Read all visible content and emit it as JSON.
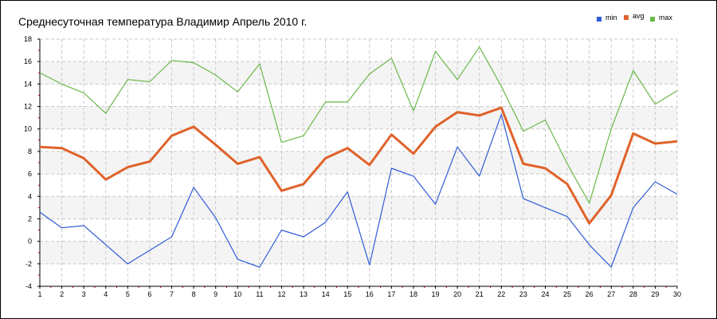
{
  "chart_data": {
    "type": "line",
    "title": "Среднесуточная температура Владимир  Апрель 2010 г.",
    "x": [
      1,
      2,
      3,
      4,
      5,
      6,
      7,
      8,
      9,
      10,
      11,
      12,
      13,
      14,
      15,
      16,
      17,
      18,
      19,
      20,
      21,
      22,
      23,
      24,
      25,
      26,
      27,
      28,
      29,
      30
    ],
    "x_tick_labels": [
      "1",
      "2",
      "3",
      "4",
      "5",
      "6",
      "7",
      "8",
      "9",
      "10",
      "11",
      "12",
      "13",
      "14",
      "15",
      "16",
      "17",
      "18",
      "19",
      "20",
      "21",
      "22",
      "23",
      "24",
      "25",
      "26",
      "27",
      "28",
      "29",
      "30"
    ],
    "xlim": [
      1,
      30
    ],
    "ylim": [
      -4,
      18
    ],
    "y_ticks": [
      -4,
      -2,
      0,
      2,
      4,
      6,
      8,
      10,
      12,
      14,
      16,
      18
    ],
    "y_tick_labels": [
      "-4",
      "-2",
      "0",
      "2",
      "4",
      "6",
      "8",
      "10",
      "12",
      "14",
      "16",
      "18"
    ],
    "grid": true,
    "legend_position": "top-right",
    "series": [
      {
        "name": "min",
        "color": "#2f5bd8",
        "values": [
          2.6,
          1.2,
          1.4,
          -0.3,
          -2.0,
          -0.8,
          0.4,
          4.8,
          2.1,
          -1.6,
          -2.3,
          1.0,
          0.4,
          1.7,
          4.4,
          -2.1,
          6.5,
          5.8,
          3.3,
          8.4,
          5.8,
          11.3,
          3.8,
          3.0,
          2.2,
          -0.3,
          -2.3,
          3.0,
          5.3,
          4.2
        ]
      },
      {
        "name": "avg",
        "color": "#e0622a",
        "values": [
          8.4,
          8.3,
          7.4,
          5.5,
          6.6,
          7.1,
          9.4,
          10.2,
          8.6,
          6.9,
          7.5,
          4.5,
          5.1,
          7.4,
          8.3,
          6.8,
          9.5,
          7.8,
          10.2,
          11.5,
          11.2,
          11.9,
          6.9,
          6.5,
          5.1,
          1.6,
          4.1,
          9.6,
          8.7,
          8.9
        ]
      },
      {
        "name": "max",
        "color": "#6ab84a",
        "values": [
          15.0,
          14.0,
          13.2,
          11.4,
          14.4,
          14.2,
          16.1,
          15.9,
          14.8,
          13.3,
          15.8,
          8.8,
          9.4,
          12.4,
          12.4,
          14.9,
          16.3,
          11.6,
          16.9,
          14.4,
          17.3,
          13.8,
          9.8,
          10.8,
          6.9,
          3.4,
          10.0,
          15.2,
          12.2,
          13.4
        ]
      }
    ]
  }
}
